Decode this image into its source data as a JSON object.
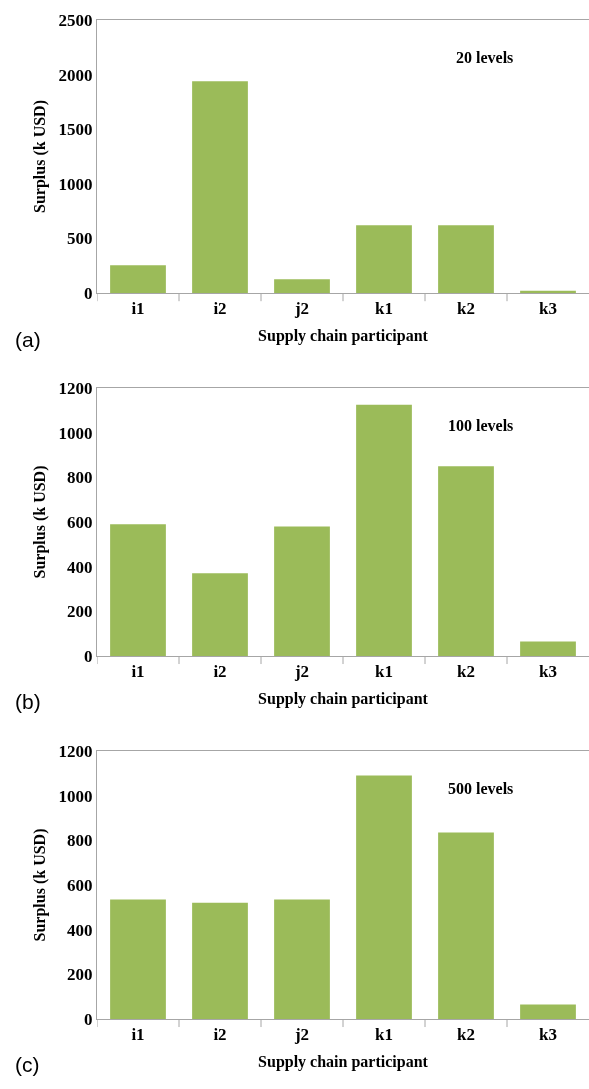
{
  "chart_data": [
    {
      "type": "bar",
      "categories": [
        "i1",
        "i2",
        "j2",
        "k1",
        "k2",
        "k3"
      ],
      "values": [
        255,
        1940,
        125,
        620,
        620,
        20
      ],
      "color": "#9bbb59",
      "xlabel": "Supply chain participant",
      "ylabel": "Surplus (k USD)",
      "ylim": [
        0,
        2500
      ],
      "yticks": [
        0,
        500,
        1000,
        1500,
        2000,
        2500
      ],
      "grid": false,
      "annotations": [
        "20 levels",
        "(a)"
      ]
    },
    {
      "type": "bar",
      "categories": [
        "i1",
        "i2",
        "j2",
        "k1",
        "k2",
        "k3"
      ],
      "values": [
        590,
        370,
        580,
        1125,
        850,
        65
      ],
      "color": "#9bbb59",
      "xlabel": "Supply chain participant",
      "ylabel": "Surplus (k USD)",
      "ylim": [
        0,
        1200
      ],
      "yticks": [
        0,
        200,
        400,
        600,
        800,
        1000,
        1200
      ],
      "grid": false,
      "annotations": [
        "100 levels",
        "(b)"
      ]
    },
    {
      "type": "bar",
      "categories": [
        "i1",
        "i2",
        "j2",
        "k1",
        "k2",
        "k3"
      ],
      "values": [
        535,
        520,
        535,
        1090,
        835,
        65
      ],
      "color": "#9bbb59",
      "xlabel": "Supply chain participant",
      "ylabel": "Surplus (k USD)",
      "ylim": [
        0,
        1200
      ],
      "yticks": [
        0,
        200,
        400,
        600,
        800,
        1000,
        1200
      ],
      "grid": false,
      "annotations": [
        "500 levels",
        "(c)"
      ]
    }
  ]
}
